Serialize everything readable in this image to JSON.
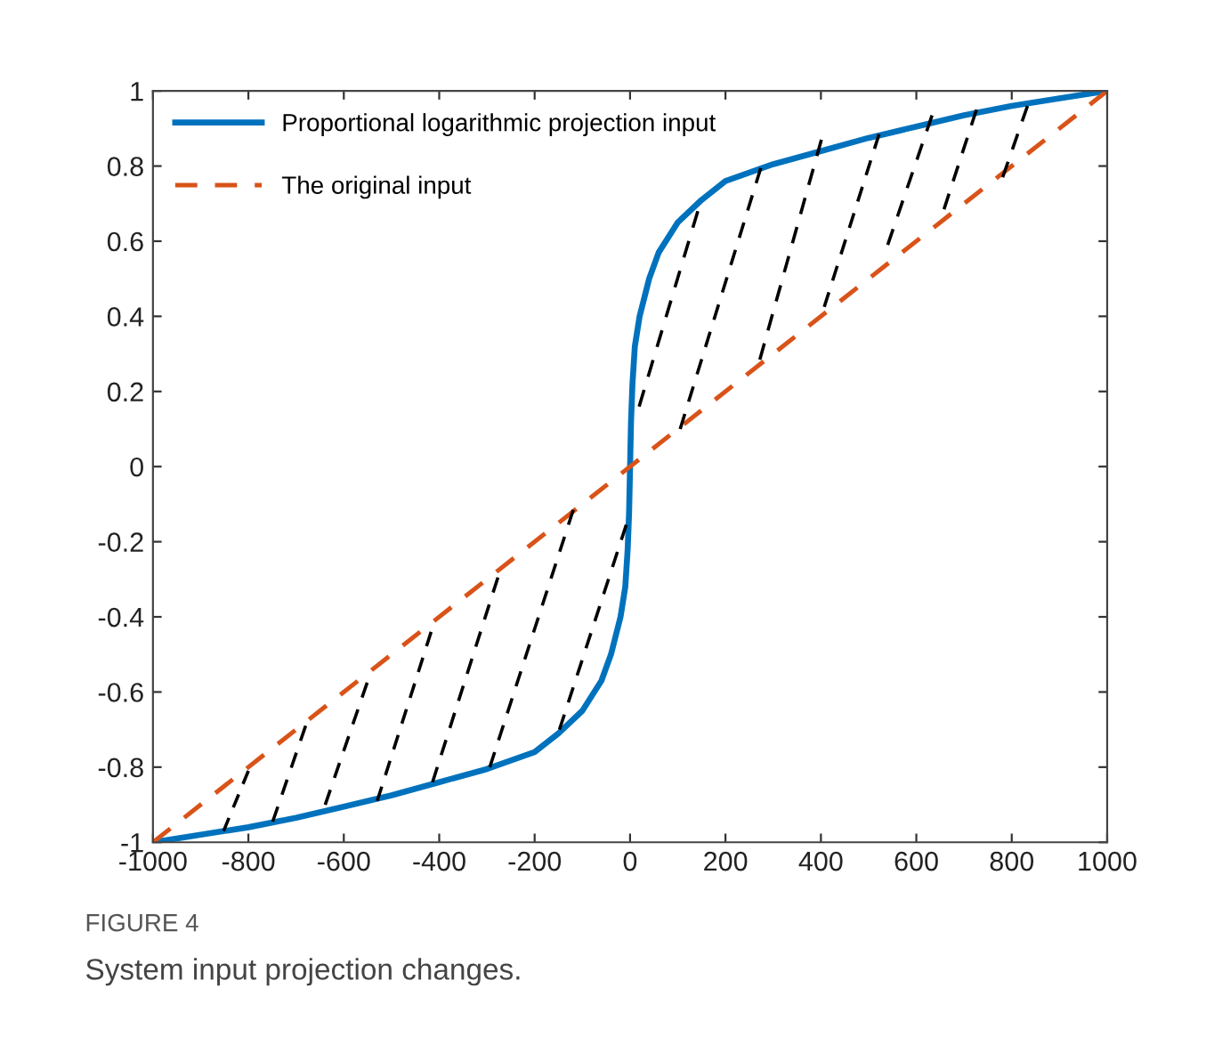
{
  "chart_data": {
    "type": "line",
    "xlim": [
      -1000,
      1000
    ],
    "ylim": [
      -1,
      1
    ],
    "xticks": [
      -1000,
      -800,
      -600,
      -400,
      -200,
      0,
      200,
      400,
      600,
      800,
      1000
    ],
    "yticks": [
      -1,
      -0.8,
      -0.6,
      -0.4,
      -0.2,
      0,
      0.2,
      0.4,
      0.6,
      0.8,
      1
    ],
    "grid": false,
    "legend": "top left",
    "annotations": [
      "FIGURE 4",
      "System input projection changes."
    ],
    "series": [
      {
        "name": "Proportional logarithmic projection input",
        "color": "#0072bd",
        "line_style": "solid",
        "x": [
          -1000,
          -900,
          -800,
          -700,
          -600,
          -500,
          -400,
          -300,
          -200,
          -150,
          -100,
          -60,
          -40,
          -20,
          -10,
          -5,
          -2,
          0,
          2,
          5,
          10,
          20,
          40,
          60,
          100,
          150,
          200,
          300,
          400,
          500,
          600,
          700,
          800,
          900,
          1000
        ],
        "values": [
          -1,
          -0.98,
          -0.96,
          -0.935,
          -0.905,
          -0.875,
          -0.84,
          -0.805,
          -0.76,
          -0.71,
          -0.65,
          -0.57,
          -0.5,
          -0.4,
          -0.32,
          -0.22,
          -0.12,
          0,
          0.12,
          0.22,
          0.32,
          0.4,
          0.5,
          0.57,
          0.65,
          0.71,
          0.76,
          0.805,
          0.84,
          0.875,
          0.905,
          0.935,
          0.96,
          0.98,
          1
        ]
      },
      {
        "name": "The original input",
        "color": "#d95319",
        "line_style": "dashed",
        "x": [
          -1000,
          1000
        ],
        "values": [
          -1,
          1
        ]
      },
      {
        "color": "#000000",
        "line_style": "dashed",
        "x": [
          -800,
          -852
        ],
        "values": [
          -0.81,
          -0.97
        ]
      },
      {
        "color": "#000000",
        "line_style": "dashed",
        "x": [
          -680,
          -749
        ],
        "values": [
          -0.69,
          -0.945
        ]
      },
      {
        "color": "#000000",
        "line_style": "dashed",
        "x": [
          -551,
          -639
        ],
        "values": [
          -0.575,
          -0.9
        ]
      },
      {
        "color": "#000000",
        "line_style": "dashed",
        "x": [
          -417,
          -530
        ],
        "values": [
          -0.44,
          -0.89
        ]
      },
      {
        "color": "#000000",
        "line_style": "dashed",
        "x": [
          -277,
          -414
        ],
        "values": [
          -0.295,
          -0.84
        ]
      },
      {
        "color": "#000000",
        "line_style": "dashed",
        "x": [
          -119,
          -294
        ],
        "values": [
          -0.115,
          -0.8
        ]
      },
      {
        "color": "#000000",
        "line_style": "dashed",
        "x": [
          -8,
          -148
        ],
        "values": [
          -0.155,
          -0.7
        ]
      },
      {
        "color": "#000000",
        "line_style": "dashed",
        "x": [
          19,
          142
        ],
        "values": [
          0.16,
          0.68
        ]
      },
      {
        "color": "#000000",
        "line_style": "dashed",
        "x": [
          105,
          274
        ],
        "values": [
          0.1,
          0.795
        ]
      },
      {
        "color": "#000000",
        "line_style": "dashed",
        "x": [
          272,
          401
        ],
        "values": [
          0.285,
          0.87
        ]
      },
      {
        "color": "#000000",
        "line_style": "dashed",
        "x": [
          407,
          522
        ],
        "values": [
          0.425,
          0.885
        ]
      },
      {
        "color": "#000000",
        "line_style": "dashed",
        "x": [
          540,
          633
        ],
        "values": [
          0.59,
          0.935
        ]
      },
      {
        "color": "#000000",
        "line_style": "dashed",
        "x": [
          658,
          726
        ],
        "values": [
          0.685,
          0.95
        ]
      },
      {
        "color": "#000000",
        "line_style": "dashed",
        "x": [
          781,
          833
        ],
        "values": [
          0.77,
          0.96
        ]
      }
    ]
  }
}
